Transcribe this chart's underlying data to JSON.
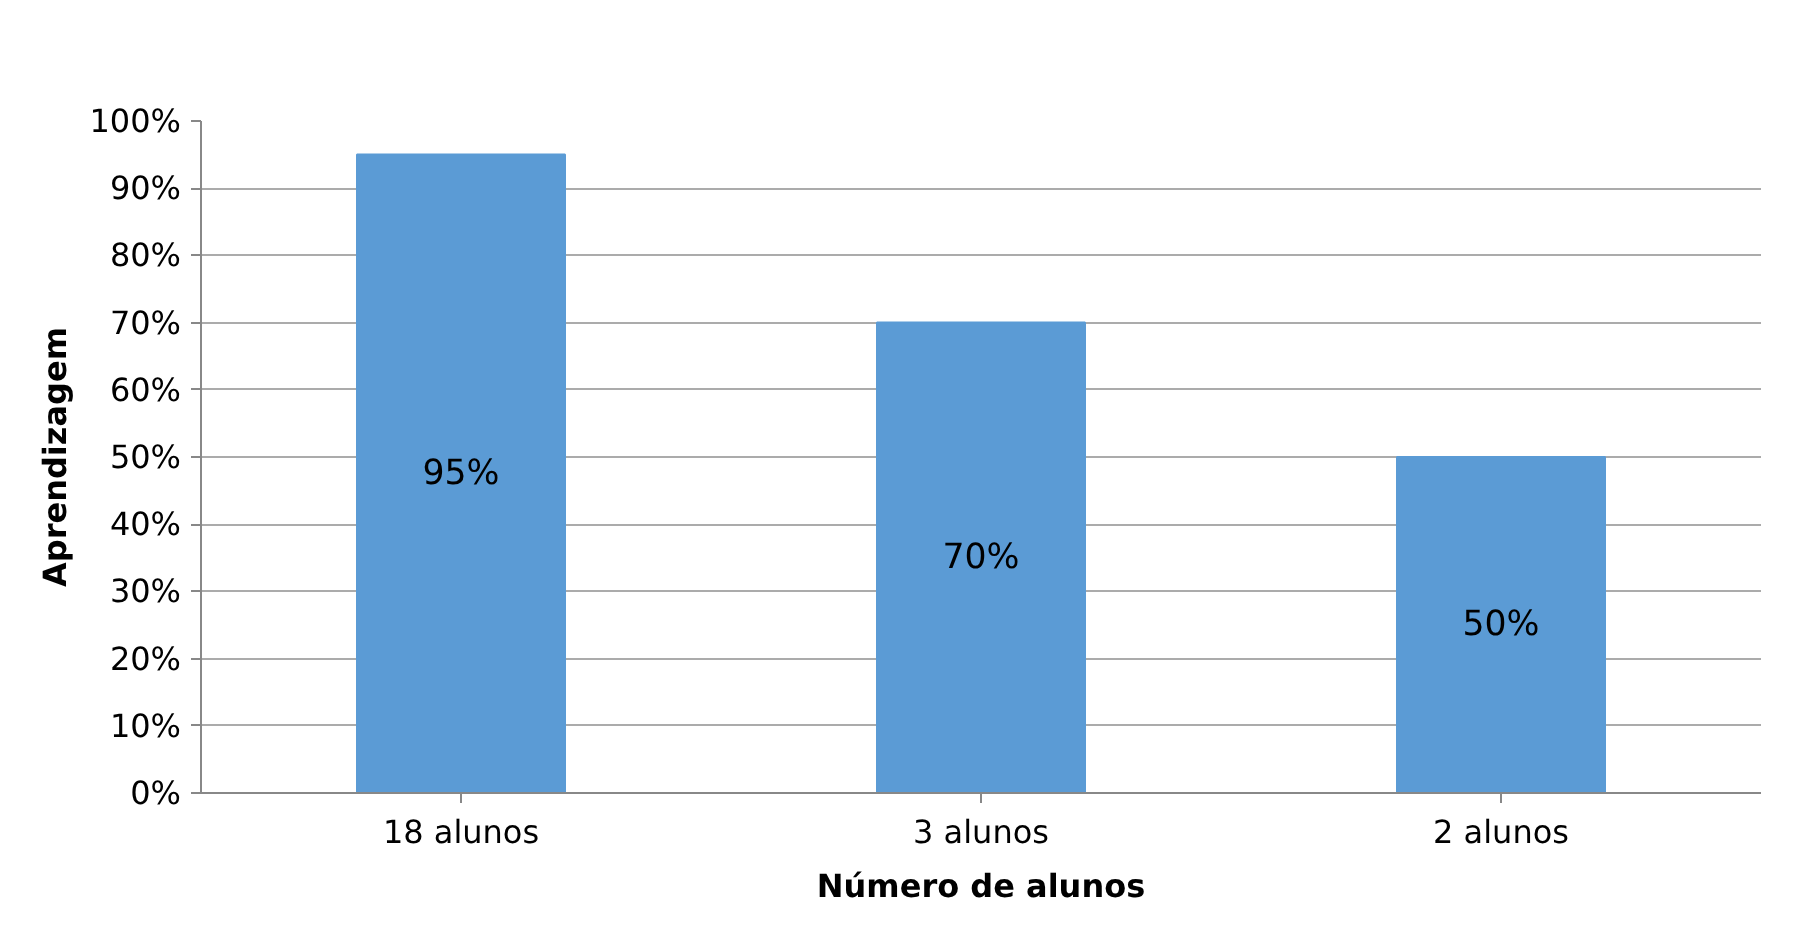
{
  "chart_data": {
    "type": "bar",
    "xlabel": "Número de alunos",
    "ylabel": "Aprendizagem",
    "categories": [
      "18 alunos",
      "3 alunos",
      "2 alunos"
    ],
    "values": [
      95,
      70,
      50
    ],
    "color": "#5b9bd5",
    "value_labels": [
      "95%",
      "70%",
      "50%"
    ],
    "ylim": [
      0,
      100
    ],
    "yticks": [
      {
        "value": 0,
        "label": "0%"
      },
      {
        "value": 10,
        "label": "10%"
      },
      {
        "value": 20,
        "label": "20%"
      },
      {
        "value": 30,
        "label": "30%"
      },
      {
        "value": 40,
        "label": "40%"
      },
      {
        "value": 50,
        "label": "50%"
      },
      {
        "value": 60,
        "label": "60%"
      },
      {
        "value": 70,
        "label": "70%"
      },
      {
        "value": 80,
        "label": "80%"
      },
      {
        "value": 90,
        "label": "90%"
      },
      {
        "value": 100,
        "label": "100%"
      }
    ],
    "grid": "y"
  }
}
